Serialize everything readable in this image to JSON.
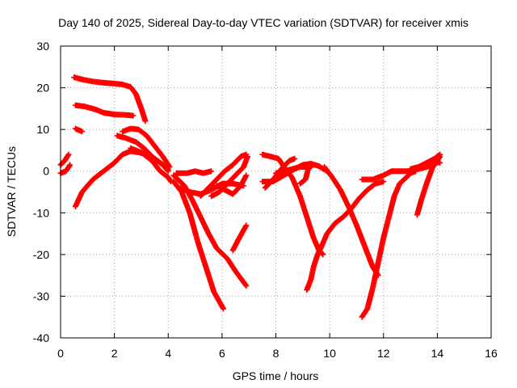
{
  "chart_data": {
    "type": "scatter",
    "title": "Day 140 of 2025, Sidereal Day-to-day VTEC variation (SDTVAR) for receiver xmis",
    "xlabel": "GPS time / hours",
    "ylabel": "SDTVAR / TECUs",
    "xlim": [
      0,
      16
    ],
    "ylim": [
      -40,
      30
    ],
    "xticks": [
      0,
      2,
      4,
      6,
      8,
      10,
      12,
      14,
      16
    ],
    "yticks": [
      -40,
      -30,
      -20,
      -10,
      0,
      10,
      20,
      30
    ],
    "grid": true,
    "marker": "+",
    "color": "#ff0000",
    "series": [
      {
        "points": [
          [
            0.5,
            22.5
          ],
          [
            0.8,
            22
          ],
          [
            1.2,
            21.5
          ],
          [
            1.6,
            21.2
          ],
          [
            2.0,
            21.0
          ],
          [
            2.3,
            20.8
          ],
          [
            2.6,
            20.2
          ],
          [
            2.8,
            18.5
          ],
          [
            3.0,
            15
          ],
          [
            3.15,
            12
          ]
        ]
      },
      {
        "points": [
          [
            0.55,
            15.8
          ],
          [
            0.9,
            15.5
          ],
          [
            1.3,
            14.8
          ],
          [
            1.6,
            14.0
          ],
          [
            2.0,
            13.6
          ],
          [
            2.4,
            13.5
          ],
          [
            2.7,
            13.3
          ]
        ]
      },
      {
        "points": [
          [
            0.55,
            10.2
          ],
          [
            0.8,
            9.5
          ]
        ]
      },
      {
        "points": [
          [
            0.0,
            1.5
          ],
          [
            0.15,
            2.5
          ],
          [
            0.3,
            4
          ]
        ]
      },
      {
        "points": [
          [
            0.0,
            -0.5
          ],
          [
            0.2,
            0
          ],
          [
            0.35,
            1.5
          ]
        ]
      },
      {
        "points": [
          [
            0.55,
            -8.5
          ],
          [
            0.8,
            -5
          ],
          [
            1.2,
            -2
          ],
          [
            1.6,
            0
          ],
          [
            2.0,
            2
          ],
          [
            2.3,
            4
          ],
          [
            2.6,
            4.8
          ],
          [
            2.9,
            4.5
          ],
          [
            3.2,
            4.0
          ],
          [
            3.6,
            2.5
          ],
          [
            4.0,
            0.5
          ]
        ]
      },
      {
        "points": [
          [
            2.1,
            8.5
          ],
          [
            2.4,
            8.0
          ],
          [
            2.8,
            7.0
          ],
          [
            3.1,
            5.5
          ],
          [
            3.4,
            3.5
          ],
          [
            3.8,
            1.5
          ],
          [
            4.0,
            0
          ]
        ]
      },
      {
        "points": [
          [
            2.3,
            9.5
          ],
          [
            2.6,
            10.2
          ],
          [
            2.9,
            10.0
          ],
          [
            3.2,
            8.5
          ],
          [
            3.5,
            6.0
          ],
          [
            3.8,
            3.5
          ],
          [
            4.05,
            1.0
          ]
        ]
      },
      {
        "points": [
          [
            2.6,
            5.5
          ],
          [
            3.0,
            4.5
          ],
          [
            3.4,
            2.5
          ],
          [
            3.7,
            0
          ],
          [
            4.0,
            -1.5
          ],
          [
            4.1,
            -2.5
          ]
        ]
      },
      {
        "points": [
          [
            4.2,
            -2.5
          ],
          [
            4.5,
            -5
          ],
          [
            4.8,
            -10
          ],
          [
            5.1,
            -17
          ],
          [
            5.4,
            -23
          ],
          [
            5.7,
            -29
          ],
          [
            6.05,
            -33
          ]
        ]
      },
      {
        "points": [
          [
            4.2,
            -1.0
          ],
          [
            4.6,
            -3.5
          ],
          [
            4.9,
            -7
          ],
          [
            5.2,
            -11
          ],
          [
            5.5,
            -15
          ],
          [
            5.8,
            -18.5
          ],
          [
            6.2,
            -21
          ],
          [
            6.5,
            -24
          ],
          [
            6.9,
            -27.5
          ]
        ]
      },
      {
        "points": [
          [
            4.4,
            -4.0
          ],
          [
            4.8,
            -5.0
          ],
          [
            5.2,
            -5.5
          ],
          [
            5.6,
            -4.5
          ],
          [
            6.0,
            -3.0
          ],
          [
            6.4,
            -3.0
          ],
          [
            6.8,
            -3.5
          ]
        ]
      },
      {
        "points": [
          [
            4.3,
            -0.5
          ],
          [
            4.7,
            -0.5
          ],
          [
            5.0,
            0
          ],
          [
            5.3,
            -0.5
          ],
          [
            5.6,
            0
          ]
        ]
      },
      {
        "points": [
          [
            5.2,
            -6
          ],
          [
            5.5,
            -4
          ],
          [
            5.8,
            -2
          ],
          [
            6.1,
            0
          ],
          [
            6.4,
            1.5
          ],
          [
            6.7,
            3.5
          ],
          [
            6.9,
            4
          ]
        ]
      },
      {
        "points": [
          [
            5.8,
            -3.5
          ],
          [
            6.1,
            -4.5
          ],
          [
            6.4,
            -5.5
          ],
          [
            6.7,
            -3.5
          ],
          [
            6.9,
            -1
          ]
        ]
      },
      {
        "points": [
          [
            5.6,
            -6
          ],
          [
            5.9,
            -5
          ],
          [
            6.2,
            -3
          ],
          [
            6.5,
            -1
          ],
          [
            6.8,
            1
          ],
          [
            6.95,
            3.5
          ]
        ]
      },
      {
        "points": [
          [
            6.4,
            -19
          ],
          [
            6.6,
            -16.5
          ],
          [
            6.9,
            -13
          ]
        ]
      },
      {
        "points": [
          [
            7.5,
            4
          ],
          [
            7.8,
            3.5
          ],
          [
            8.1,
            3.0
          ],
          [
            8.3,
            1.0
          ],
          [
            8.6,
            -1.5
          ],
          [
            8.9,
            -6
          ],
          [
            9.1,
            -10
          ],
          [
            9.4,
            -16
          ],
          [
            9.6,
            -19
          ],
          [
            9.75,
            -20
          ]
        ]
      },
      {
        "points": [
          [
            7.5,
            -2.5
          ],
          [
            7.9,
            -2.5
          ],
          [
            8.3,
            -1.0
          ],
          [
            8.7,
            0.5
          ],
          [
            9.0,
            1.5
          ],
          [
            9.3,
            1.8
          ],
          [
            9.6,
            1.2
          ],
          [
            9.9,
            0
          ]
        ]
      },
      {
        "points": [
          [
            7.6,
            -4
          ],
          [
            7.9,
            -2
          ],
          [
            8.2,
            0.5
          ],
          [
            8.5,
            2.5
          ],
          [
            8.7,
            3
          ]
        ]
      },
      {
        "points": [
          [
            8.9,
            -3
          ],
          [
            9.1,
            -2
          ],
          [
            9.2,
            0.5
          ],
          [
            9.3,
            1
          ]
        ]
      },
      {
        "points": [
          [
            8.0,
            -0.5
          ],
          [
            8.3,
            0
          ],
          [
            8.6,
            0.5
          ],
          [
            8.9,
            1.0
          ],
          [
            9.2,
            1.0
          ]
        ]
      },
      {
        "points": [
          [
            9.15,
            -28.5
          ],
          [
            9.3,
            -26
          ],
          [
            9.4,
            -23
          ],
          [
            9.55,
            -20
          ],
          [
            9.7,
            -18
          ],
          [
            9.9,
            -15
          ],
          [
            10.2,
            -12.5
          ],
          [
            10.5,
            -11
          ],
          [
            10.8,
            -9
          ],
          [
            11.1,
            -6.5
          ],
          [
            11.4,
            -4.5
          ],
          [
            11.7,
            -3
          ],
          [
            12.0,
            -2.5
          ]
        ]
      },
      {
        "points": [
          [
            9.8,
            1
          ],
          [
            10.1,
            -1.5
          ],
          [
            10.4,
            -4.5
          ],
          [
            10.7,
            -8.5
          ],
          [
            11.0,
            -13
          ],
          [
            11.3,
            -18
          ],
          [
            11.6,
            -23
          ],
          [
            11.8,
            -25
          ]
        ]
      },
      {
        "points": [
          [
            11.2,
            -35
          ],
          [
            11.4,
            -33
          ],
          [
            11.6,
            -28
          ],
          [
            11.8,
            -22
          ],
          [
            12.0,
            -16
          ],
          [
            12.2,
            -11
          ],
          [
            12.4,
            -6
          ],
          [
            12.6,
            -3
          ],
          [
            12.85,
            -1.5
          ],
          [
            13.0,
            -0.5
          ],
          [
            13.2,
            0
          ]
        ]
      },
      {
        "points": [
          [
            11.2,
            -2
          ],
          [
            11.6,
            -2
          ],
          [
            12.0,
            -1
          ],
          [
            12.3,
            0
          ],
          [
            12.6,
            0
          ],
          [
            12.9,
            0
          ],
          [
            13.2,
            0.5
          ],
          [
            13.5,
            1
          ],
          [
            13.8,
            2
          ],
          [
            14.05,
            3
          ]
        ]
      },
      {
        "points": [
          [
            13.25,
            -10.5
          ],
          [
            13.4,
            -7
          ],
          [
            13.6,
            -3
          ],
          [
            13.8,
            0.5
          ],
          [
            13.95,
            2.5
          ]
        ]
      },
      {
        "points": [
          [
            13.3,
            0.5
          ],
          [
            13.6,
            1.0
          ],
          [
            13.9,
            1.5
          ],
          [
            14.1,
            3.5
          ]
        ]
      },
      {
        "points": [
          [
            13.0,
            0.5
          ],
          [
            13.3,
            1.0
          ],
          [
            13.6,
            2.0
          ],
          [
            13.9,
            3.0
          ],
          [
            14.1,
            4.0
          ]
        ]
      },
      {
        "points": [
          [
            13.5,
            1.5
          ],
          [
            13.8,
            2.5
          ],
          [
            14.1,
            2.0
          ]
        ]
      }
    ]
  }
}
